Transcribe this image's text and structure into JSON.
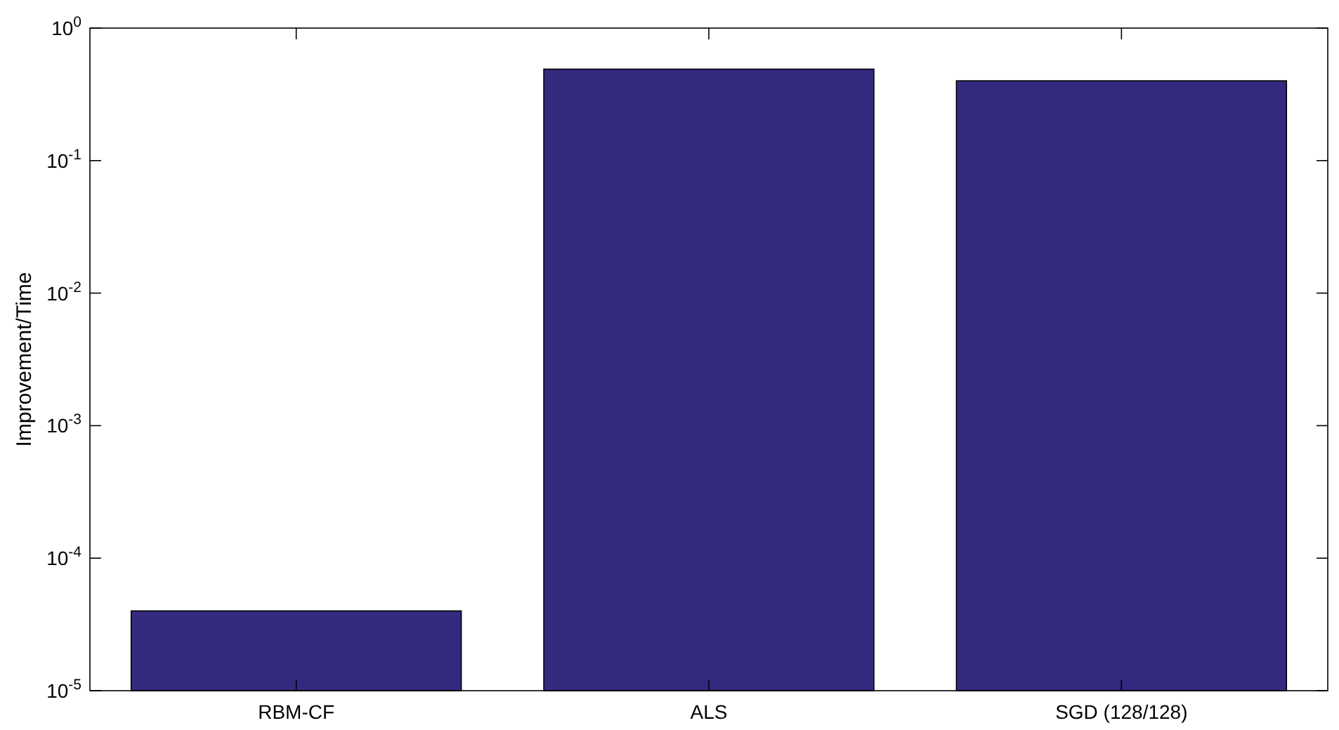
{
  "chart_data": {
    "type": "bar",
    "ylabel": "Improvement/Time",
    "categories": [
      "RBM-CF",
      "ALS",
      "SGD (128/128)"
    ],
    "values": [
      4e-05,
      0.49,
      0.4
    ],
    "color": "#332a80",
    "log": "y",
    "ylim": [
      1e-05,
      1
    ],
    "yticks": [
      {
        "value": 1e-05,
        "label": "10$^{-5}$"
      },
      {
        "value": 0.0001,
        "label": "10$^{-4}$"
      },
      {
        "value": 0.001,
        "label": "10$^{-3}$"
      },
      {
        "value": 0.01,
        "label": "10$^{-2}$"
      },
      {
        "value": 0.1,
        "label": "10$^{-1}$"
      },
      {
        "value": 1,
        "label": "10$^{0}$"
      }
    ],
    "grid": false
  }
}
